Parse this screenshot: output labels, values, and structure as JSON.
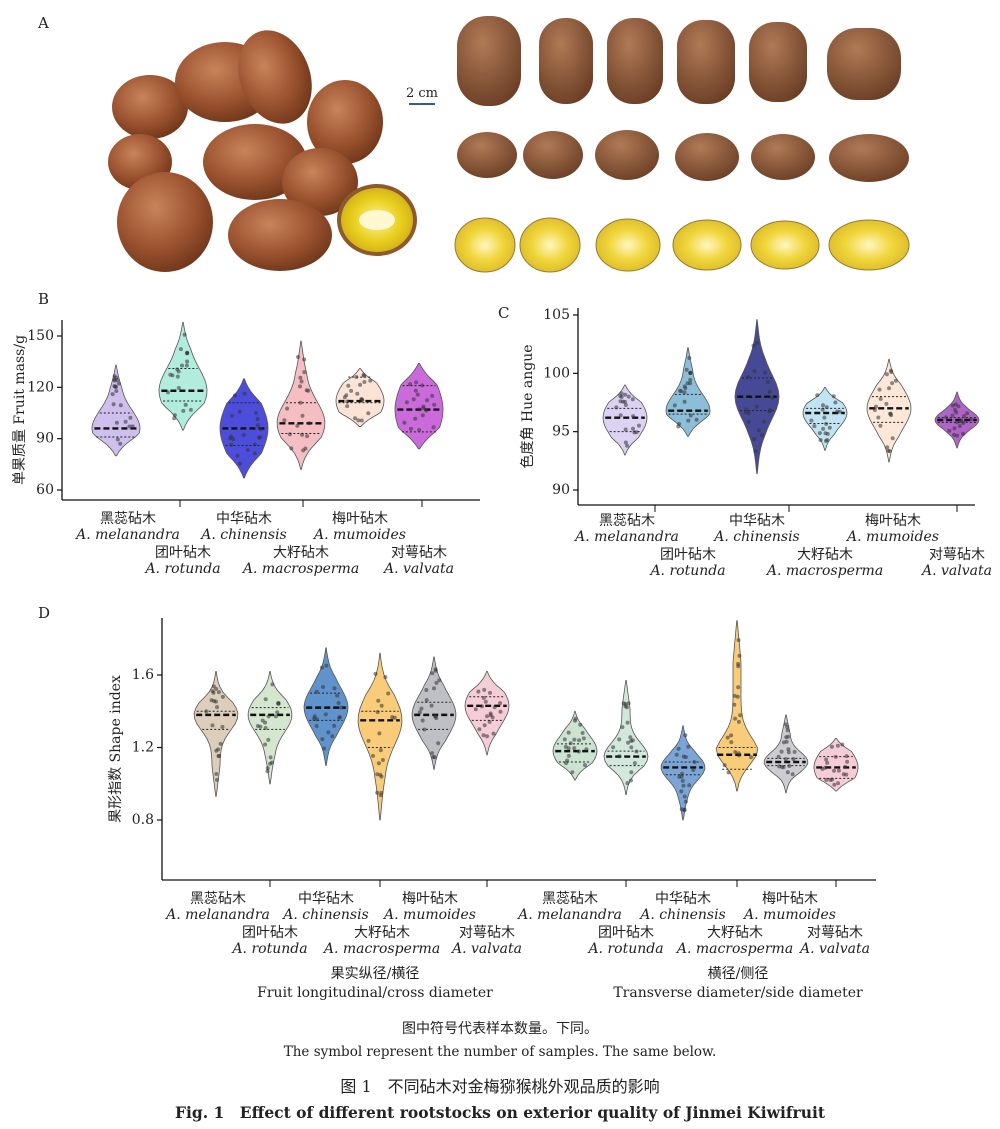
{
  "panels": {
    "A": {
      "letter": "A",
      "scale_bar": "2 cm"
    },
    "B": {
      "letter": "B"
    },
    "C": {
      "letter": "C"
    },
    "D": {
      "letter": "D"
    }
  },
  "footnote": {
    "cn": "图中符号代表样本数量。下同。",
    "en": "The symbol represent the number of samples. The same below."
  },
  "caption": {
    "cn": "图 1　不同砧木对金梅猕猴桃外观品质的影响",
    "en": "Fig. 1　Effect of different rootstocks on exterior quality of Jinmei Kiwifruit"
  },
  "chart_data": [
    {
      "panel": "B",
      "type": "violin",
      "ylabel": "单果质量 Fruit mass/g",
      "ylim": [
        60,
        160
      ],
      "yticks": [
        60,
        90,
        120,
        150
      ],
      "categories": [
        {
          "cn": "黑蕊砧木",
          "en": "A. melanandra"
        },
        {
          "cn": "团叶砧木",
          "en": "A. rotunda"
        },
        {
          "cn": "中华砧木",
          "en": "A. chinensis"
        },
        {
          "cn": "大籽砧木",
          "en": "A. macrosperma"
        },
        {
          "cn": "梅叶砧木",
          "en": "A. mumoides"
        },
        {
          "cn": "对萼砧木",
          "en": "A. valvata"
        }
      ],
      "series": [
        {
          "color": "#c9b8ea",
          "median": 96,
          "q1": 91,
          "q3": 105,
          "min": 80,
          "max": 133
        },
        {
          "color": "#a8ead9",
          "median": 118,
          "q1": 112,
          "q3": 131,
          "min": 95,
          "max": 158
        },
        {
          "color": "#3a3ad8",
          "median": 96,
          "q1": 86,
          "q3": 111,
          "min": 67,
          "max": 125
        },
        {
          "color": "#f3b7bb",
          "median": 99,
          "q1": 93,
          "q3": 111,
          "min": 72,
          "max": 147
        },
        {
          "color": "#fbe1d2",
          "median": 112,
          "q1": 111,
          "q3": 126,
          "min": 97,
          "max": 131
        },
        {
          "color": "#c55ad6",
          "median": 107,
          "q1": 94,
          "q3": 121,
          "min": 84,
          "max": 134
        }
      ]
    },
    {
      "panel": "C",
      "type": "violin",
      "ylabel": "色度角 Hue angue",
      "ylim": [
        90,
        105
      ],
      "yticks": [
        90,
        95,
        100,
        105
      ],
      "categories": [
        {
          "cn": "黑蕊砧木",
          "en": "A. melanandra"
        },
        {
          "cn": "团叶砧木",
          "en": "A. rotunda"
        },
        {
          "cn": "中华砧木",
          "en": "A. chinensis"
        },
        {
          "cn": "大籽砧木",
          "en": "A. macrosperma"
        },
        {
          "cn": "梅叶砧木",
          "en": "A. mumoides"
        },
        {
          "cn": "对萼砧木",
          "en": "A. valvata"
        }
      ],
      "series": [
        {
          "color": "#d8cdf2",
          "median": 96.2,
          "q1": 95.0,
          "q3": 97.0,
          "min": 93.0,
          "max": 99.0
        },
        {
          "color": "#7fb7d6",
          "median": 96.8,
          "q1": 96.5,
          "q3": 98.2,
          "min": 94.6,
          "max": 102.2
        },
        {
          "color": "#32358a",
          "median": 98.0,
          "q1": 96.8,
          "q3": 99.6,
          "min": 91.4,
          "max": 104.6
        },
        {
          "color": "#b9e1f0",
          "median": 96.6,
          "q1": 95.7,
          "q3": 97.0,
          "min": 93.4,
          "max": 98.8
        },
        {
          "color": "#fbe6d4",
          "median": 97.0,
          "q1": 95.8,
          "q3": 98.0,
          "min": 92.4,
          "max": 101.2
        },
        {
          "color": "#a553c3",
          "median": 96.0,
          "q1": 95.8,
          "q3": 96.2,
          "min": 93.6,
          "max": 98.4
        }
      ]
    },
    {
      "panel": "D",
      "type": "violin",
      "ylabel": "果形指数 Shape index",
      "ylim": [
        0.7,
        1.9
      ],
      "yticks": [
        0.8,
        1.2,
        1.6
      ],
      "groups": [
        {
          "cn": "果实纵径/横径",
          "en": "Fruit longitudinal/cross diameter"
        },
        {
          "cn": "横径/侧径",
          "en": "Transverse diameter/side diameter"
        }
      ],
      "categories": [
        {
          "cn": "黑蕊砧木",
          "en": "A. melanandra"
        },
        {
          "cn": "团叶砧木",
          "en": "A. rotunda"
        },
        {
          "cn": "中华砧木",
          "en": "A. chinensis"
        },
        {
          "cn": "大籽砧木",
          "en": "A. macrosperma"
        },
        {
          "cn": "梅叶砧木",
          "en": "A. mumoides"
        },
        {
          "cn": "对萼砧木",
          "en": "A. valvata"
        }
      ],
      "series": [
        {
          "color": "#d9c9b4",
          "median": 1.38,
          "q1": 1.3,
          "q3": 1.4,
          "min": 0.93,
          "max": 1.62
        },
        {
          "color": "#cfe3c9",
          "median": 1.38,
          "q1": 1.3,
          "q3": 1.42,
          "min": 1.0,
          "max": 1.62
        },
        {
          "color": "#4f86c7",
          "median": 1.42,
          "q1": 1.35,
          "q3": 1.5,
          "min": 1.1,
          "max": 1.75
        },
        {
          "color": "#f8c66a",
          "median": 1.35,
          "q1": 1.2,
          "q3": 1.4,
          "min": 0.8,
          "max": 1.72
        },
        {
          "color": "#b8b8c0",
          "median": 1.38,
          "q1": 1.3,
          "q3": 1.45,
          "min": 1.08,
          "max": 1.7
        },
        {
          "color": "#f4c8d2",
          "median": 1.43,
          "q1": 1.35,
          "q3": 1.48,
          "min": 1.16,
          "max": 1.62
        },
        {
          "color": "#c7e0cd",
          "median": 1.18,
          "q1": 1.12,
          "q3": 1.22,
          "min": 1.02,
          "max": 1.4
        },
        {
          "color": "#cde6d9",
          "median": 1.15,
          "q1": 1.1,
          "q3": 1.18,
          "min": 0.94,
          "max": 1.57
        },
        {
          "color": "#6d9bd1",
          "median": 1.09,
          "q1": 1.05,
          "q3": 1.12,
          "min": 0.8,
          "max": 1.32
        },
        {
          "color": "#f8c66a",
          "median": 1.16,
          "q1": 1.08,
          "q3": 1.2,
          "min": 0.96,
          "max": 1.9
        },
        {
          "color": "#c8c8cc",
          "median": 1.12,
          "q1": 1.1,
          "q3": 1.14,
          "min": 0.95,
          "max": 1.38
        },
        {
          "color": "#f4c8d2",
          "median": 1.09,
          "q1": 1.03,
          "q3": 1.15,
          "min": 0.96,
          "max": 1.25
        }
      ]
    }
  ]
}
